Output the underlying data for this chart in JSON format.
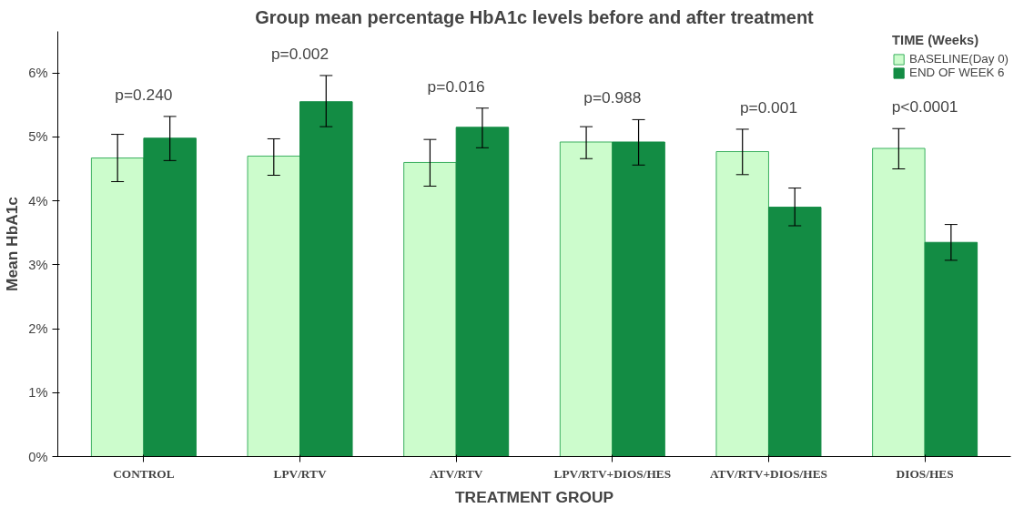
{
  "chart_data": {
    "type": "bar",
    "title": "Group mean percentage HbA1c levels before and after treatment",
    "xlabel": "TREATMENT GROUP",
    "ylabel": "Mean HbA1c",
    "legend_title": "TIME (Weeks)",
    "categories": [
      "CONTROL",
      "LPV/RTV",
      "ATV/RTV",
      "LPV/RTV+DIOS/HES",
      "ATV/RTV+DIOS/HES",
      "DIOS/HES"
    ],
    "series": [
      {
        "name": "BASELINE(Day 0)",
        "color": "#ccfccc",
        "values": [
          4.67,
          4.7,
          4.6,
          4.92,
          4.77,
          4.82
        ],
        "errors": [
          [
            4.3,
            5.04
          ],
          [
            4.4,
            4.97
          ],
          [
            4.23,
            4.96
          ],
          [
            4.66,
            5.16
          ],
          [
            4.41,
            5.12
          ],
          [
            4.5,
            5.13
          ]
        ]
      },
      {
        "name": "END OF WEEK 6",
        "color": "#138c44",
        "values": [
          4.98,
          5.55,
          5.15,
          4.92,
          3.9,
          3.35
        ],
        "errors": [
          [
            4.63,
            5.32
          ],
          [
            5.16,
            5.96
          ],
          [
            4.83,
            5.45
          ],
          [
            4.56,
            5.27
          ],
          [
            3.61,
            4.2
          ],
          [
            3.07,
            3.63
          ]
        ]
      }
    ],
    "ylim": [
      0,
      6.65
    ],
    "yticks": [
      {
        "value": 0,
        "label": "0%"
      },
      {
        "value": 1,
        "label": "1%"
      },
      {
        "value": 2,
        "label": "2%"
      },
      {
        "value": 3,
        "label": "3%"
      },
      {
        "value": 4,
        "label": "4%"
      },
      {
        "value": 5,
        "label": "5%"
      },
      {
        "value": 6,
        "label": "6%"
      }
    ],
    "annotations": [
      "p=0.240",
      "p=0.002",
      "p=0.016",
      "p=0.988",
      "p=0.001",
      "p<0.0001"
    ],
    "grid": false,
    "legend": "top right"
  }
}
